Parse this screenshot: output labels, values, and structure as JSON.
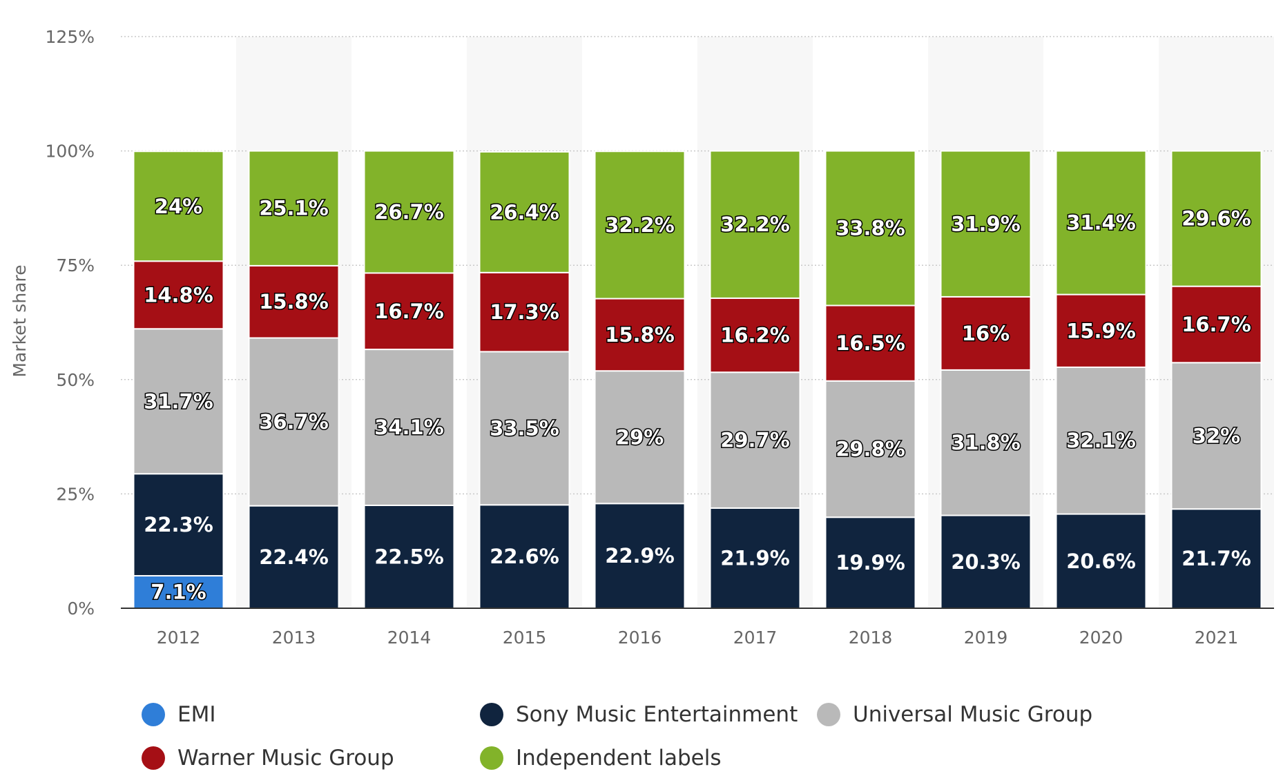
{
  "chart_data": {
    "type": "bar",
    "stacked": true,
    "ylabel": "Market share",
    "ylim": [
      0,
      125
    ],
    "yticks": [
      "0%",
      "25%",
      "50%",
      "75%",
      "100%",
      "125%"
    ],
    "ytick_values": [
      0,
      25,
      50,
      75,
      100,
      125
    ],
    "grid": true,
    "legend_position": "bottom",
    "categories": [
      "2012",
      "2013",
      "2014",
      "2015",
      "2016",
      "2017",
      "2018",
      "2019",
      "2020",
      "2021"
    ],
    "series": [
      {
        "name": "EMI",
        "color": "#2f7ed8",
        "values": [
          7.1,
          null,
          null,
          null,
          null,
          null,
          null,
          null,
          null,
          null
        ],
        "labels": [
          "7.1%",
          "",
          "",
          "",
          "",
          "",
          "",
          "",
          "",
          ""
        ]
      },
      {
        "name": "Sony Music Entertainment",
        "color": "#10243e",
        "values": [
          22.3,
          22.4,
          22.5,
          22.6,
          22.9,
          21.9,
          19.9,
          20.3,
          20.6,
          21.7
        ],
        "labels": [
          "22.3%",
          "22.4%",
          "22.5%",
          "22.6%",
          "22.9%",
          "21.9%",
          "19.9%",
          "20.3%",
          "20.6%",
          "21.7%"
        ]
      },
      {
        "name": "Universal Music Group",
        "color": "#b9b9b9",
        "values": [
          31.7,
          36.7,
          34.1,
          33.5,
          29,
          29.7,
          29.8,
          31.8,
          32.1,
          32
        ],
        "labels": [
          "31.7%",
          "36.7%",
          "34.1%",
          "33.5%",
          "29%",
          "29.7%",
          "29.8%",
          "31.8%",
          "32.1%",
          "32%"
        ]
      },
      {
        "name": "Warner Music Group",
        "color": "#a50f15",
        "values": [
          14.8,
          15.8,
          16.7,
          17.3,
          15.8,
          16.2,
          16.5,
          16,
          15.9,
          16.7
        ],
        "labels": [
          "14.8%",
          "15.8%",
          "16.7%",
          "17.3%",
          "15.8%",
          "16.2%",
          "16.5%",
          "16%",
          "15.9%",
          "16.7%"
        ]
      },
      {
        "name": "Independent labels",
        "color": "#82b32a",
        "values": [
          24,
          25.1,
          26.7,
          26.4,
          32.2,
          32.2,
          33.8,
          31.9,
          31.4,
          29.6
        ],
        "labels": [
          "24%",
          "25.1%",
          "26.7%",
          "26.4%",
          "32.2%",
          "32.2%",
          "33.8%",
          "31.9%",
          "31.4%",
          "29.6%"
        ]
      }
    ]
  },
  "legend": {
    "items": [
      {
        "label": "EMI",
        "color": "#2f7ed8"
      },
      {
        "label": "Sony Music Entertainment",
        "color": "#10243e"
      },
      {
        "label": "Universal Music Group",
        "color": "#b9b9b9"
      },
      {
        "label": "Warner Music Group",
        "color": "#a50f15"
      },
      {
        "label": "Independent labels",
        "color": "#82b32a"
      }
    ]
  }
}
